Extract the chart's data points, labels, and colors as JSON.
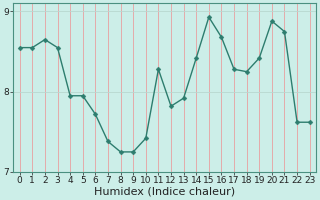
{
  "x": [
    0,
    1,
    2,
    3,
    4,
    5,
    6,
    7,
    8,
    9,
    10,
    11,
    12,
    13,
    14,
    15,
    16,
    17,
    18,
    19,
    20,
    21,
    22,
    23
  ],
  "y": [
    8.55,
    8.55,
    8.65,
    8.55,
    7.95,
    7.95,
    7.72,
    7.38,
    7.25,
    7.25,
    7.42,
    8.28,
    7.82,
    7.92,
    8.42,
    8.93,
    8.68,
    8.28,
    8.25,
    8.42,
    8.88,
    8.75,
    7.62,
    7.62
  ],
  "line_color": "#2d7d6e",
  "marker": "D",
  "markersize": 2.5,
  "linewidth": 1.0,
  "bg_color": "#cceee8",
  "grid_color_v": "#e8a0a0",
  "grid_color_h": "#b8d8d0",
  "xlabel": "Humidex (Indice chaleur)",
  "xlim": [
    -0.5,
    23.5
  ],
  "ylim": [
    7.0,
    9.1
  ],
  "yticks": [
    7,
    8,
    9
  ],
  "xticks": [
    0,
    1,
    2,
    3,
    4,
    5,
    6,
    7,
    8,
    9,
    10,
    11,
    12,
    13,
    14,
    15,
    16,
    17,
    18,
    19,
    20,
    21,
    22,
    23
  ],
  "tick_fontsize": 6.5,
  "xlabel_fontsize": 8.0
}
